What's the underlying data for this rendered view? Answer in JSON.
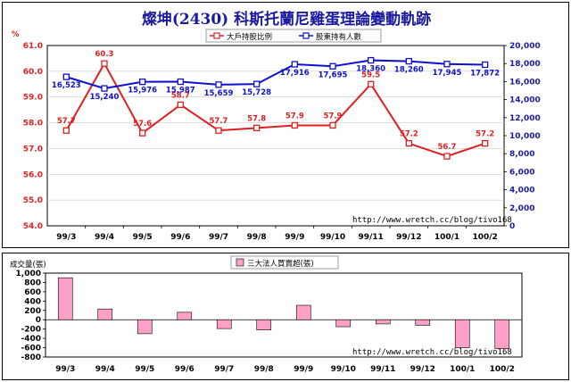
{
  "chart_data": [
    {
      "type": "line",
      "title": "燦坤(2430) 科斯托蘭尼雞蛋理論變動軌跡",
      "categories": [
        "99/3",
        "99/4",
        "99/5",
        "99/6",
        "99/7",
        "99/8",
        "99/9",
        "99/10",
        "99/11",
        "99/12",
        "100/1",
        "100/2"
      ],
      "y_left_unit": "%",
      "y_left_ticks": [
        "54.0",
        "55.0",
        "56.0",
        "57.0",
        "58.0",
        "59.0",
        "60.0",
        "61.0"
      ],
      "ylim_left": [
        54,
        61
      ],
      "y_right_ticks": [
        "0",
        "2,000",
        "4,000",
        "6,000",
        "8,000",
        "10,000",
        "12,000",
        "14,000",
        "16,000",
        "18,000",
        "20,000"
      ],
      "ylim_right": [
        0,
        20000
      ],
      "legend_position": "top-right",
      "series": [
        {
          "name": "大戶持股比例",
          "axis": "left",
          "color": "#e02020",
          "values": [
            57.7,
            60.3,
            57.6,
            58.7,
            57.7,
            57.8,
            57.9,
            57.9,
            59.5,
            57.2,
            56.7,
            57.2
          ],
          "labels": [
            "57.7",
            "60.3",
            "57.6",
            "58.7",
            "57.7",
            "57.8",
            "57.9",
            "57.9",
            "59.5",
            "57.2",
            "56.7",
            "57.2"
          ]
        },
        {
          "name": "股東持有人數",
          "axis": "right",
          "color": "#1010d0",
          "values": [
            16523,
            15240,
            15976,
            15987,
            15659,
            15728,
            17916,
            17695,
            18360,
            18260,
            17945,
            17872
          ],
          "labels": [
            "16,523",
            "15,240",
            "15,976",
            "15,987",
            "15,659",
            "15,728",
            "17,916",
            "17,695",
            "18,360",
            "18,260",
            "17,945",
            "17,872"
          ]
        }
      ],
      "watermark": "http://www.wretch.cc/blog/tivo168"
    },
    {
      "type": "bar",
      "categories": [
        "99/3",
        "99/4",
        "99/5",
        "99/6",
        "99/7",
        "99/8",
        "99/9",
        "99/10",
        "99/11",
        "99/12",
        "100/1",
        "100/2"
      ],
      "ylabel": "成交量(張)",
      "y_ticks": [
        "1,000",
        "800",
        "600",
        "400",
        "200",
        "0",
        "-200",
        "-400",
        "-600",
        "-800"
      ],
      "ylim": [
        -800,
        1000
      ],
      "legend_position": "top-center",
      "series": [
        {
          "name": "三大法人買賣超(張)",
          "color": "#ffa0c8",
          "values": [
            900,
            230,
            -300,
            160,
            -190,
            -220,
            310,
            -150,
            -90,
            -120,
            -600,
            -620
          ]
        }
      ],
      "watermark": "http://www.wretch.cc/blog/tivo168"
    }
  ]
}
